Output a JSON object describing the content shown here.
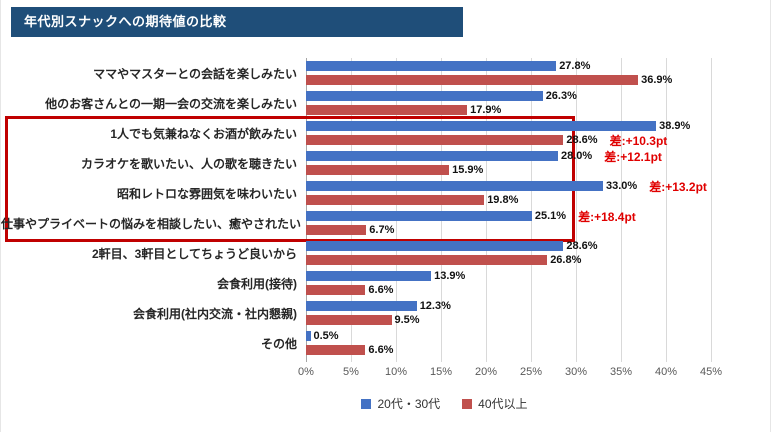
{
  "page": {
    "title_bar": "年代別スナックへの期待値の比較"
  },
  "colors": {
    "title_bar_bg": "#1F4E79",
    "title_bar_text": "#FFFFFF",
    "series_20s30s": "#4472C4",
    "series_40plus": "#C0504D",
    "highlight_box": "#C00000",
    "diff_text": "#E00000",
    "gridline": "#D9D9D9",
    "axis_text": "#595959",
    "label_text": "#262626"
  },
  "chart_data": {
    "type": "bar",
    "orientation": "horizontal",
    "title": "年代別スナックへの期待値の比較",
    "categories": [
      "ママやマスターとの会話を楽しみたい",
      "他のお客さんとの一期一会の交流を楽しみたい",
      "1人でも気兼ねなくお酒が飲みたい",
      "カラオケを歌いたい、人の歌を聴きたい",
      "昭和レトロな雰囲気を味わいたい",
      "仕事やプライベートの悩みを相談したい、癒やされたい",
      "2軒目、3軒目としてちょうど良いから",
      "会食利用(接待)",
      "会食利用(社内交流・社内懇親)",
      "その他"
    ],
    "series": [
      {
        "name": "20代・30代",
        "values": [
          27.8,
          26.3,
          38.9,
          28.0,
          33.0,
          25.1,
          28.6,
          13.9,
          12.3,
          0.5
        ]
      },
      {
        "name": "40代以上",
        "values": [
          36.9,
          17.9,
          28.6,
          15.9,
          19.8,
          6.7,
          26.8,
          6.6,
          9.5,
          6.6
        ]
      }
    ],
    "value_suffix": "%",
    "xlim": [
      0,
      45
    ],
    "x_ticks": [
      "0%",
      "5%",
      "10%",
      "15%",
      "20%",
      "25%",
      "30%",
      "35%",
      "40%",
      "45%"
    ],
    "grid": true,
    "legend_position": "bottom",
    "diff_annotations": [
      {
        "row": 2,
        "series": 1,
        "text": "差:+10.3pt"
      },
      {
        "row": 3,
        "series": 0,
        "text": "差:+12.1pt"
      },
      {
        "row": 4,
        "series": 0,
        "text": "差:+13.2pt"
      },
      {
        "row": 5,
        "series": 0,
        "text": "差:+18.4pt"
      }
    ],
    "highlight_box_rows": [
      2,
      5
    ]
  }
}
